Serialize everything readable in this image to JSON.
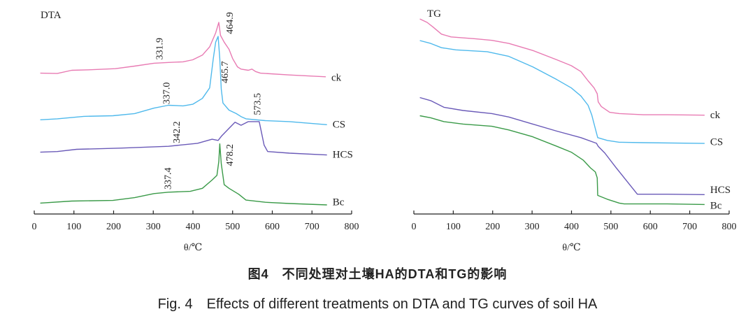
{
  "caption": {
    "cn": "图4　不同处理对土壤HA的DTA和TG的影响",
    "en": "Fig. 4　Effects of different treatments on DTA and TG curves of soil HA"
  },
  "chart_data": [
    {
      "type": "line",
      "title": "DTA",
      "xlabel": "θ/℃",
      "ylabel": "",
      "xlim": [
        0,
        800
      ],
      "ylim": [
        0,
        100
      ],
      "y_units": "relative (no y-axis scale shown)",
      "xticks": [
        "0",
        "100",
        "200",
        "300",
        "400",
        "500",
        "600",
        "700",
        "800"
      ],
      "grid": false,
      "series": [
        {
          "name": "ck",
          "color": "#e87bb3",
          "x": [
            15.2,
            57.9,
            94.5,
            143.3,
            204.3,
            253,
            301.8,
            338.4,
            375,
            399.4,
            423.8,
            442.1,
            457.3,
            465.2,
            469.5,
            478.7,
            490.9,
            500,
            512.2,
            521.3,
            539.6,
            548.8,
            557.9,
            570.1,
            643.3,
            734.8
          ],
          "y": [
            69.7,
            69.5,
            71.1,
            71.4,
            71.9,
            73.2,
            74.6,
            75.0,
            75.3,
            76.3,
            78.6,
            82.7,
            89.6,
            94.8,
            88.4,
            85.0,
            81.5,
            76.9,
            72.8,
            71.7,
            71.1,
            71.7,
            70.5,
            69.7,
            68.8,
            67.9
          ],
          "label_y": 67.6
        },
        {
          "name": "CS",
          "color": "#4fb9ec",
          "x": [
            15.2,
            57.9,
            125,
            198.2,
            253,
            301.8,
            338.4,
            375,
            399.4,
            423.8,
            442.1,
            451.2,
            457.3,
            463.4,
            467.7,
            471.3,
            475.6,
            490.9,
            509.1,
            521.3,
            533.5,
            582.3,
            643.3,
            737.8
          ],
          "y": [
            46.6,
            47.1,
            48.3,
            48.6,
            49.7,
            52.4,
            53.8,
            53.5,
            54.3,
            57.2,
            62.4,
            76.9,
            85.0,
            87.9,
            76.9,
            61.8,
            54.9,
            51.4,
            49.7,
            48.2,
            47.1,
            46.2,
            45.7,
            44.2
          ],
          "label_y": 44.5
        },
        {
          "name": "HCS",
          "color": "#6a5ab8",
          "x": [
            15.2,
            57.9,
            106.7,
            216.5,
            338.4,
            411.6,
            448.2,
            463.4,
            472.6,
            490.9,
            506.1,
            521.3,
            539.6,
            567.1,
            573.2,
            579.3,
            588.4,
            643.3,
            737.8
          ],
          "y": [
            30.6,
            30.9,
            32.0,
            32.6,
            33.5,
            35.0,
            37.0,
            36.4,
            38.7,
            42.4,
            45.4,
            43.9,
            45.7,
            45.7,
            39.9,
            34.1,
            30.9,
            30.1,
            29.2
          ],
          "label_y": 29.5
        },
        {
          "name": "Bc",
          "color": "#3a9a48",
          "x": [
            15.2,
            94.5,
            198.2,
            253,
            301.8,
            338.4,
            393.3,
            423.8,
            448.2,
            460.4,
            465.2,
            467.7,
            471.3,
            478.7,
            490.9,
            515.2,
            533.5,
            582.3,
            643.3,
            737.8
          ],
          "y": [
            5.4,
            6.4,
            6.7,
            8.1,
            10.1,
            10.8,
            11.2,
            12.7,
            16.8,
            19.1,
            26.0,
            34.7,
            24.9,
            14.5,
            12.7,
            9.8,
            6.9,
            5.8,
            5.2,
            4.5
          ],
          "label_y": 6.1
        }
      ],
      "annotations": [
        {
          "text": "331.9",
          "x": 317,
          "y": 76.3
        },
        {
          "text": "464.9",
          "x": 494,
          "y": 89
        },
        {
          "text": "337.0",
          "x": 335,
          "y": 54.3
        },
        {
          "text": "465.7",
          "x": 482,
          "y": 64.7
        },
        {
          "text": "573.5",
          "x": 564,
          "y": 48.9
        },
        {
          "text": "342.2",
          "x": 360,
          "y": 35
        },
        {
          "text": "478.2",
          "x": 494,
          "y": 23.7
        },
        {
          "text": "337.4",
          "x": 338,
          "y": 12.1
        }
      ]
    },
    {
      "type": "line",
      "title": "TG",
      "xlabel": "θ/℃",
      "ylabel": "",
      "xlim": [
        0,
        800
      ],
      "ylim": [
        0,
        100
      ],
      "y_units": "relative (no y-axis scale shown)",
      "xticks": [
        "0",
        "100",
        "200",
        "300",
        "400",
        "500",
        "600",
        "700",
        "800"
      ],
      "grid": false,
      "series": [
        {
          "name": "ck",
          "color": "#e87bb3",
          "x": [
            15.2,
            33.5,
            48.8,
            70.1,
            94.5,
            155.5,
            198.2,
            240.9,
            301.8,
            362.8,
            399.4,
            423.8,
            442.1,
            457.3,
            465.2,
            467.7,
            475.6,
            496.9,
            521.3,
            582.3,
            643.3,
            737.8
          ],
          "y": [
            96.5,
            94.8,
            92.5,
            89.0,
            87.6,
            86.7,
            85.9,
            84.4,
            80.9,
            76.3,
            73.4,
            70.5,
            65.9,
            62.4,
            59.5,
            55.5,
            53.2,
            50.3,
            49.7,
            49.1,
            49.1,
            48.9
          ],
          "label_y": 49.1
        },
        {
          "name": "CS",
          "color": "#4fb9ec",
          "x": [
            15.2,
            42.7,
            70.1,
            106.7,
            186,
            240.9,
            301.8,
            362.8,
            399.4,
            423.8,
            442.1,
            451.2,
            460.4,
            466.5,
            490.9,
            521.3,
            582.3,
            737.8
          ],
          "y": [
            85.8,
            84.4,
            82.3,
            81.2,
            80.3,
            78.0,
            72.8,
            66.5,
            62.4,
            58.4,
            53.8,
            49.1,
            42.2,
            37.8,
            36.4,
            35.5,
            35.3,
            34.9
          ],
          "label_y": 35.8
        },
        {
          "name": "HCS",
          "color": "#6a5ab8",
          "x": [
            15.2,
            42.7,
            76.2,
            125,
            198.2,
            240.9,
            301.8,
            362.8,
            423.8,
            463.4,
            467.7,
            484.8,
            512.2,
            567.1,
            643.3,
            737.8
          ],
          "y": [
            57.6,
            56.1,
            52.8,
            51.2,
            49.7,
            48.0,
            44.5,
            41.0,
            37.8,
            35.0,
            33.5,
            30.1,
            23.1,
            9.8,
            9.8,
            9.6
          ],
          "label_y": 12.1
        },
        {
          "name": "Bc",
          "color": "#3a9a48",
          "x": [
            15.2,
            42.7,
            76.2,
            125,
            198.2,
            240.9,
            301.8,
            362.8,
            399.4,
            429.9,
            448.2,
            460.4,
            465.2,
            466.5,
            490.9,
            521.3,
            533.5,
            643.3,
            737.8
          ],
          "y": [
            48.6,
            47.6,
            45.7,
            44.5,
            43.4,
            41.6,
            38.2,
            33.5,
            30.6,
            26.6,
            22.8,
            20.8,
            17.9,
            9.2,
            7.3,
            5.4,
            5.0,
            5.0,
            4.7
          ],
          "label_y": 4.3
        }
      ],
      "annotations": []
    }
  ]
}
